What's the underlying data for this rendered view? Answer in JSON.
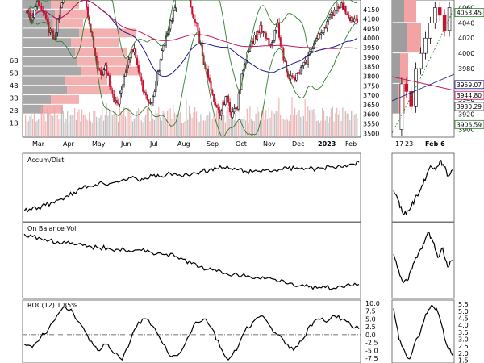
{
  "chart_data": [
    {
      "id": "main",
      "type": "candlestick",
      "title": "",
      "x_month_labels": [
        "Mar",
        "Apr",
        "May",
        "Jun",
        "Jul",
        "Aug",
        "Sep",
        "Oct",
        "Nov",
        "Dec",
        "2023",
        "Feb"
      ],
      "y_ticks": [
        4150,
        4100,
        4050,
        4000,
        3950,
        3900,
        3850,
        3800,
        3750,
        3700,
        3650,
        3600,
        3550,
        3500
      ],
      "ylim": [
        3480,
        4200
      ],
      "volume_ticks": [
        "6B",
        "5B",
        "4B",
        "3B",
        "2B",
        "1B"
      ],
      "close_path": [
        4150,
        4080,
        4200,
        4140,
        4050,
        4000,
        4150,
        4280,
        4400,
        4450,
        4300,
        4100,
        3950,
        3800,
        3850,
        3700,
        3650,
        3750,
        3900,
        3950,
        3780,
        3700,
        3650,
        3800,
        3950,
        4050,
        4150,
        4250,
        4270,
        4150,
        4050,
        3900,
        3780,
        3640,
        3600,
        3700,
        3600,
        3640,
        3850,
        3950,
        4000,
        4050,
        4000,
        3950,
        4080,
        3900,
        3800,
        3780,
        3830,
        3870,
        3950,
        4000,
        4050,
        4100,
        4150,
        4180,
        4140,
        4100,
        4080
      ],
      "series": [
        {
          "name": "Upper Bollinger",
          "color": "#2e7d2e"
        },
        {
          "name": "Lower Bollinger",
          "color": "#2e7d2e"
        },
        {
          "name": "SMA 50",
          "color": "#1a1a8c"
        },
        {
          "name": "SMA 200",
          "color": "#c2185b"
        }
      ],
      "volume_by_price_colors": {
        "up": "#f2a3a3",
        "down": "#9e9e9e"
      },
      "candle_colors": {
        "up": "#000000",
        "down": "#c8102e"
      }
    },
    {
      "id": "accum-dist",
      "type": "line",
      "title": "Accum/Dist",
      "values": [
        0.1,
        0.12,
        0.16,
        0.2,
        0.25,
        0.3,
        0.36,
        0.42,
        0.48,
        0.52,
        0.55,
        0.58,
        0.57,
        0.6,
        0.64,
        0.66,
        0.62,
        0.66,
        0.7,
        0.68,
        0.72,
        0.73,
        0.7,
        0.71,
        0.75,
        0.78,
        0.8,
        0.82,
        0.84,
        0.82,
        0.8,
        0.78,
        0.76,
        0.78,
        0.8,
        0.79,
        0.81,
        0.82,
        0.82,
        0.84,
        0.82,
        0.82,
        0.83,
        0.85,
        0.86,
        0.88,
        0.9,
        0.93
      ]
    },
    {
      "id": "on-balance-vol",
      "type": "line",
      "title": "On Balance Vol",
      "values": [
        0.92,
        0.88,
        0.85,
        0.82,
        0.8,
        0.78,
        0.75,
        0.74,
        0.72,
        0.7,
        0.7,
        0.68,
        0.67,
        0.65,
        0.66,
        0.64,
        0.62,
        0.6,
        0.56,
        0.52,
        0.45,
        0.4,
        0.36,
        0.33,
        0.3,
        0.28,
        0.26,
        0.24,
        0.22,
        0.22,
        0.2,
        0.18,
        0.14,
        0.1,
        0.08,
        0.06,
        0.07,
        0.06,
        0.08,
        0.1,
        0.12
      ]
    },
    {
      "id": "roc",
      "type": "line",
      "title": "ROC(12) 1.85%",
      "y_ticks": [
        "10.0",
        "7.5",
        "5.0",
        "2.5",
        "0.0",
        "-2.5",
        "-5.0",
        "-7.5"
      ],
      "ylim": [
        -9,
        11
      ],
      "values": [
        -3,
        -4,
        -1,
        2,
        6,
        9,
        7,
        3,
        -2,
        -5,
        -3,
        -6,
        -8,
        -2,
        4,
        5,
        2,
        -3,
        -7,
        -6,
        -1,
        4,
        5,
        2,
        -4,
        -8,
        -5,
        1,
        4,
        6,
        3,
        0,
        -3,
        -5,
        -2,
        3,
        5,
        4,
        6,
        5,
        3,
        1.85
      ]
    },
    {
      "id": "zoom-price",
      "type": "candlestick",
      "x_labels": [
        "17",
        "23",
        "Feb 6"
      ],
      "y_ticks": [
        4060,
        4040,
        4020,
        4000,
        3980,
        3960,
        3940,
        3920,
        3900
      ],
      "ylim": [
        3890,
        4070
      ],
      "price_labels": [
        "4053.45",
        "3959.07",
        "3944.80",
        "3930.29",
        "3906.59"
      ],
      "close_path": [
        3900,
        3960,
        3950,
        3930,
        3980,
        4000,
        4020,
        4040,
        4060,
        4050,
        4030,
        4060
      ]
    },
    {
      "id": "zoom-accum-dist",
      "type": "line",
      "values": [
        0.45,
        0.3,
        0.1,
        0.05,
        0.15,
        0.3,
        0.4,
        0.55,
        0.75,
        0.85,
        0.8,
        0.95,
        0.85,
        0.7,
        0.8
      ]
    },
    {
      "id": "zoom-obv",
      "type": "line",
      "values": [
        0.6,
        0.35,
        0.15,
        0.2,
        0.45,
        0.6,
        0.75,
        0.95,
        0.8,
        0.55,
        0.7,
        0.4,
        0.5
      ]
    },
    {
      "id": "zoom-roc",
      "type": "line",
      "y_ticks": [
        "5.5",
        "5.0",
        "4.5",
        "4.0",
        "3.5",
        "3.0",
        "2.5",
        "2.0",
        "1.5"
      ],
      "ylim": [
        1.3,
        5.8
      ],
      "values": [
        5.2,
        3.0,
        2.2,
        1.6,
        2.8,
        3.5,
        4.8,
        5.4,
        5.2,
        4.0,
        2.5,
        1.85
      ]
    }
  ]
}
